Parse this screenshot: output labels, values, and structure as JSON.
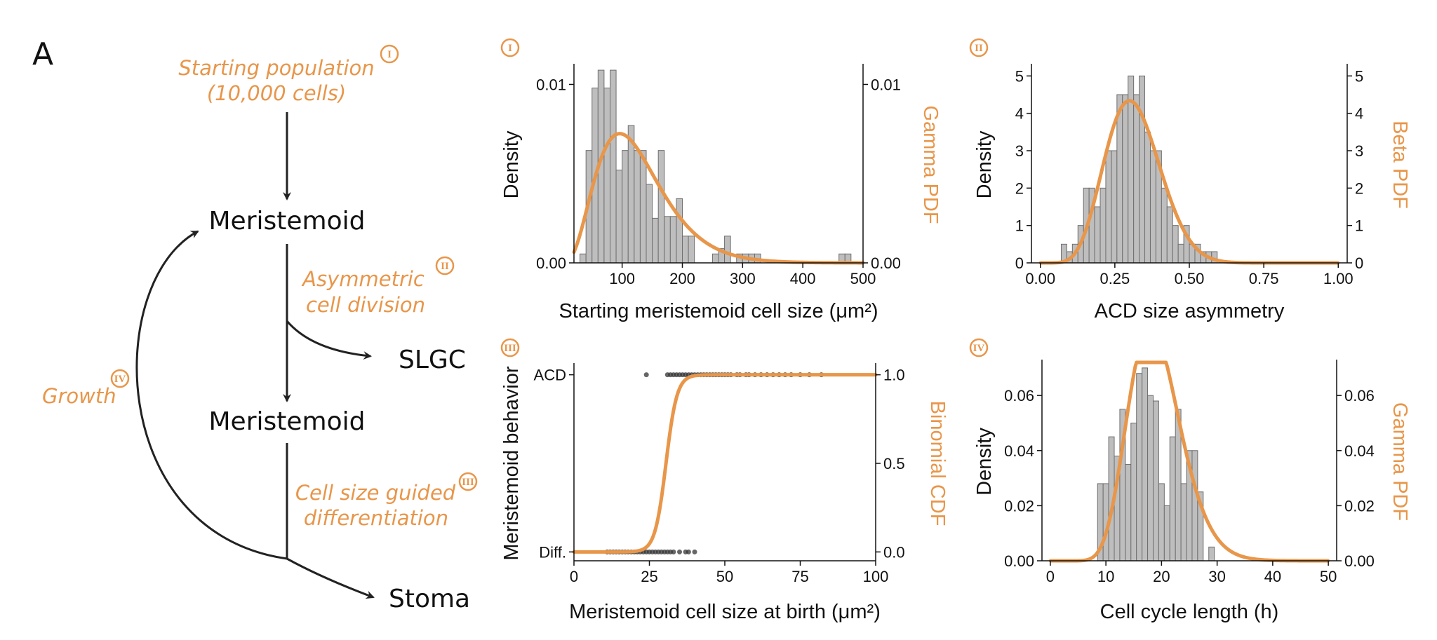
{
  "figure": {
    "panel_label": "A",
    "accent_color": "#E8964A",
    "bar_color": "#BEBEBE",
    "bar_edge_color": "#6E6E6E",
    "point_color": "#333333"
  },
  "diagram": {
    "start_label_line1": "Starting population",
    "start_label_line2": "(10,000 cells)",
    "start_badge": "I",
    "node_meristemoid_1": "Meristemoid",
    "node_slgc": "SLGC",
    "node_meristemoid_2": "Meristemoid",
    "node_stoma": "Stoma",
    "asym_line1": "Asymmetric",
    "asym_line2": "cell division",
    "asym_badge": "II",
    "diff_line1": "Cell size guided",
    "diff_line2": "differentiation",
    "diff_badge": "III",
    "growth_label": "Growth",
    "growth_badge": "IV"
  },
  "chart_data": [
    {
      "id": "I",
      "badge": "I",
      "type": "bar",
      "title": "",
      "xlabel": "Starting meristemoid cell size (μm²)",
      "ylabel": "Density",
      "y2label": "Gamma PDF",
      "xlim": [
        20,
        500
      ],
      "ylim": [
        0,
        0.011
      ],
      "xticks": [
        "100",
        "200",
        "300",
        "400",
        "500"
      ],
      "xtick_values": [
        100,
        200,
        300,
        400,
        500
      ],
      "yticks": [
        "0.00",
        "0.01"
      ],
      "ytick_values": [
        0,
        0.01
      ],
      "y2ticks": [
        "0.00",
        "0.01"
      ],
      "bin_start": 30,
      "bin_width": 10,
      "values": [
        0.0005,
        0.0063,
        0.0098,
        0.0108,
        0.0098,
        0.0108,
        0.0052,
        0.0063,
        0.0077,
        0.0063,
        0.0063,
        0.0044,
        0.0025,
        0.0063,
        0.0026,
        0.0026,
        0.0036,
        0.0015,
        0.0015,
        0,
        0,
        0,
        0.0005,
        0.0008,
        0.0015,
        0,
        0.0005,
        0.0005,
        0.0005,
        0.0005,
        0,
        0,
        0,
        0,
        0,
        0,
        0,
        0,
        0,
        0,
        0,
        0,
        0,
        0.0005,
        0.0005
      ],
      "curve": {
        "kind": "gamma_pdf",
        "shape": 4.2,
        "scale": 30
      }
    },
    {
      "id": "II",
      "badge": "II",
      "type": "bar",
      "title": "",
      "xlabel": "ACD size asymmetry",
      "ylabel": "Density",
      "y2label": "Beta PDF",
      "xlim": [
        -0.03,
        1.03
      ],
      "ylim": [
        0,
        5.25
      ],
      "xticks": [
        "0.00",
        "0.25",
        "0.50",
        "0.75",
        "1.00"
      ],
      "xtick_values": [
        0,
        0.25,
        0.5,
        0.75,
        1
      ],
      "yticks": [
        "0",
        "1",
        "2",
        "3",
        "4",
        "5"
      ],
      "ytick_values": [
        0,
        1,
        2,
        3,
        4,
        5
      ],
      "y2ticks": [
        "0",
        "1",
        "2",
        "3",
        "4",
        "5"
      ],
      "bin_start": 0.07,
      "bin_width": 0.0187,
      "values": [
        0.5,
        0.3,
        0.5,
        1.0,
        2.0,
        2.0,
        1.5,
        2.0,
        3.0,
        3.0,
        4.5,
        4.5,
        5.0,
        4.5,
        5.0,
        3.5,
        3.0,
        3.0,
        2.0,
        1.5,
        1.0,
        0.5,
        1.0,
        0.5,
        0.5,
        0.3,
        0.3,
        0.3
      ],
      "curve": {
        "kind": "beta_pdf",
        "alpha": 8.0,
        "beta": 17.4
      }
    },
    {
      "id": "III",
      "badge": "III",
      "type": "scatter",
      "title": "",
      "xlabel": "Meristemoid cell size at birth (μm²)",
      "ylabel": "Meristemoid behavior",
      "y2label": "Binomial CDF",
      "xlim": [
        0,
        100
      ],
      "ylim": [
        -0.05,
        1.05
      ],
      "xticks": [
        "0",
        "25",
        "50",
        "75",
        "100"
      ],
      "xtick_values": [
        0,
        25,
        50,
        75,
        100
      ],
      "ytick_values": [
        0,
        1
      ],
      "yticks": [
        "Diff.",
        "ACD"
      ],
      "y2ticks": [
        "0.0",
        "0.5",
        "1.0"
      ],
      "y2tick_values": [
        0,
        0.5,
        1
      ],
      "acd_x": [
        24,
        31,
        32,
        33,
        34,
        35,
        36,
        37,
        38,
        39,
        40,
        41,
        42,
        43,
        44,
        45,
        46,
        47,
        48,
        49,
        50,
        51,
        52,
        54,
        55,
        57,
        58,
        60,
        62,
        64,
        66,
        68,
        70,
        72,
        75,
        78,
        82
      ],
      "diff_x": [
        11,
        12,
        13,
        14,
        15,
        16,
        17,
        18,
        19,
        20,
        21,
        22,
        23,
        24,
        25,
        26,
        27,
        28,
        29,
        30,
        31,
        32,
        33,
        35,
        37,
        38,
        40
      ],
      "curve": {
        "kind": "logistic_cdf",
        "midpoint": 30.5,
        "steepness": 0.55
      }
    },
    {
      "id": "IV",
      "badge": "IV",
      "type": "bar",
      "title": "",
      "xlabel": "Cell cycle length (h)",
      "ylabel": "Density",
      "y2label": "Gamma PDF",
      "xlim": [
        -1.5,
        51.5
      ],
      "ylim": [
        0,
        0.072
      ],
      "xticks": [
        "0",
        "10",
        "20",
        "30",
        "40",
        "50"
      ],
      "xtick_values": [
        0,
        10,
        20,
        30,
        40,
        50
      ],
      "yticks": [
        "0.00",
        "0.02",
        "0.04",
        "0.06"
      ],
      "ytick_values": [
        0,
        0.02,
        0.04,
        0.06
      ],
      "y2ticks": [
        "0.00",
        "0.02",
        "0.04",
        "0.06"
      ],
      "bin_start": 8.5,
      "bin_width": 1,
      "values": [
        0.028,
        0.028,
        0.045,
        0.038,
        0.055,
        0.035,
        0.05,
        0.068,
        0.07,
        0.06,
        0.058,
        0.028,
        0.02,
        0.045,
        0.055,
        0.028,
        0.04,
        0.04,
        0.025,
        0.0,
        0.005,
        0.0,
        0.0,
        0.0,
        0.0,
        0.0,
        0.0,
        0.0
      ],
      "curve": {
        "kind": "gamma_pdf",
        "shape": 16,
        "scale": 1.2
      }
    }
  ]
}
